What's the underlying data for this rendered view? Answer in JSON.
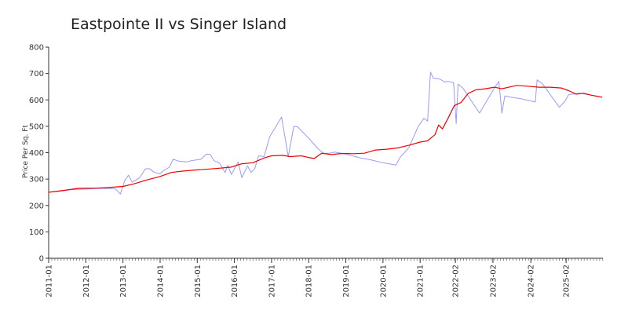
{
  "chart_data": {
    "type": "line",
    "title": "Eastpointe II vs Singer Island",
    "xlabel": "",
    "ylabel": "Price Per Sq. Ft",
    "xlim": [
      2011.0,
      2025.92
    ],
    "ylim": [
      0,
      800
    ],
    "yticks": [
      0,
      100,
      200,
      300,
      400,
      500,
      600,
      700,
      800
    ],
    "xticks": [
      {
        "label": "2011-01",
        "x": 2011.0
      },
      {
        "label": "2012-01",
        "x": 2012.0
      },
      {
        "label": "2013-01",
        "x": 2013.0
      },
      {
        "label": "2014-01",
        "x": 2014.0
      },
      {
        "label": "2015-01",
        "x": 2015.0
      },
      {
        "label": "2016-01",
        "x": 2016.0
      },
      {
        "label": "2017-01",
        "x": 2017.0
      },
      {
        "label": "2018-01",
        "x": 2018.0
      },
      {
        "label": "2019-01",
        "x": 2019.0
      },
      {
        "label": "2020-01",
        "x": 2020.0
      },
      {
        "label": "2021-01",
        "x": 2021.0
      },
      {
        "label": "2022-02",
        "x": 2021.95
      },
      {
        "label": "2023-02",
        "x": 2022.96
      },
      {
        "label": "2024-02",
        "x": 2023.98
      },
      {
        "label": "2025-02",
        "x": 2024.93
      }
    ],
    "grid": false,
    "legend": "none",
    "series": [
      {
        "color": "#9999ff",
        "points": [
          [
            2011.0,
            250
          ],
          [
            2011.3,
            254
          ],
          [
            2011.6,
            260
          ],
          [
            2012.0,
            262
          ],
          [
            2012.4,
            265
          ],
          [
            2012.8,
            263
          ],
          [
            2012.93,
            243
          ],
          [
            2013.05,
            295
          ],
          [
            2013.15,
            315
          ],
          [
            2013.25,
            288
          ],
          [
            2013.45,
            305
          ],
          [
            2013.6,
            338
          ],
          [
            2013.7,
            340
          ],
          [
            2013.85,
            325
          ],
          [
            2014.0,
            320
          ],
          [
            2014.1,
            333
          ],
          [
            2014.25,
            345
          ],
          [
            2014.35,
            375
          ],
          [
            2014.5,
            368
          ],
          [
            2014.7,
            365
          ],
          [
            2014.85,
            370
          ],
          [
            2015.1,
            375
          ],
          [
            2015.25,
            395
          ],
          [
            2015.35,
            393
          ],
          [
            2015.45,
            370
          ],
          [
            2015.6,
            360
          ],
          [
            2015.75,
            325
          ],
          [
            2015.82,
            352
          ],
          [
            2015.92,
            318
          ],
          [
            2016.1,
            365
          ],
          [
            2016.2,
            305
          ],
          [
            2016.35,
            350
          ],
          [
            2016.45,
            325
          ],
          [
            2016.55,
            340
          ],
          [
            2016.65,
            388
          ],
          [
            2016.8,
            385
          ],
          [
            2016.95,
            460
          ],
          [
            2017.27,
            535
          ],
          [
            2017.45,
            385
          ],
          [
            2017.6,
            500
          ],
          [
            2017.7,
            498
          ],
          [
            2018.0,
            455
          ],
          [
            2018.25,
            415
          ],
          [
            2018.4,
            398
          ],
          [
            2018.55,
            398
          ],
          [
            2018.7,
            402
          ],
          [
            2019.0,
            395
          ],
          [
            2019.25,
            385
          ],
          [
            2019.4,
            380
          ],
          [
            2019.6,
            375
          ],
          [
            2020.0,
            362
          ],
          [
            2020.35,
            353
          ],
          [
            2020.45,
            380
          ],
          [
            2020.7,
            420
          ],
          [
            2020.95,
            500
          ],
          [
            2021.1,
            530
          ],
          [
            2021.2,
            520
          ],
          [
            2021.28,
            705
          ],
          [
            2021.35,
            683
          ],
          [
            2021.55,
            678
          ],
          [
            2021.65,
            668
          ],
          [
            2021.75,
            670
          ],
          [
            2021.9,
            665
          ],
          [
            2021.97,
            510
          ],
          [
            2022.02,
            660
          ],
          [
            2022.15,
            645
          ],
          [
            2022.6,
            550
          ],
          [
            2023.0,
            645
          ],
          [
            2023.12,
            670
          ],
          [
            2023.2,
            550
          ],
          [
            2023.28,
            615
          ],
          [
            2023.45,
            610
          ],
          [
            2023.7,
            605
          ],
          [
            2023.9,
            598
          ],
          [
            2024.1,
            592
          ],
          [
            2024.15,
            676
          ],
          [
            2024.3,
            660
          ],
          [
            2024.75,
            572
          ],
          [
            2024.9,
            595
          ],
          [
            2025.0,
            620
          ],
          [
            2025.3,
            625
          ],
          [
            2025.6,
            618
          ],
          [
            2025.85,
            612
          ]
        ]
      },
      {
        "color": "#ee0000",
        "points": [
          [
            2011.0,
            250
          ],
          [
            2011.4,
            257
          ],
          [
            2011.8,
            265
          ],
          [
            2012.3,
            266
          ],
          [
            2012.6,
            268
          ],
          [
            2013.0,
            272
          ],
          [
            2013.3,
            282
          ],
          [
            2013.6,
            295
          ],
          [
            2014.0,
            310
          ],
          [
            2014.3,
            325
          ],
          [
            2014.6,
            330
          ],
          [
            2015.0,
            335
          ],
          [
            2015.5,
            340
          ],
          [
            2015.9,
            345
          ],
          [
            2016.2,
            358
          ],
          [
            2016.5,
            362
          ],
          [
            2016.8,
            380
          ],
          [
            2017.0,
            388
          ],
          [
            2017.3,
            390
          ],
          [
            2017.5,
            385
          ],
          [
            2017.8,
            388
          ],
          [
            2018.0,
            382
          ],
          [
            2018.15,
            378
          ],
          [
            2018.35,
            398
          ],
          [
            2018.6,
            393
          ],
          [
            2018.9,
            397
          ],
          [
            2019.2,
            396
          ],
          [
            2019.5,
            398
          ],
          [
            2019.8,
            410
          ],
          [
            2020.1,
            413
          ],
          [
            2020.4,
            418
          ],
          [
            2020.7,
            428
          ],
          [
            2021.0,
            440
          ],
          [
            2021.2,
            445
          ],
          [
            2021.4,
            468
          ],
          [
            2021.5,
            505
          ],
          [
            2021.6,
            490
          ],
          [
            2021.75,
            530
          ],
          [
            2021.92,
            578
          ],
          [
            2022.1,
            590
          ],
          [
            2022.3,
            625
          ],
          [
            2022.5,
            638
          ],
          [
            2022.75,
            642
          ],
          [
            2023.0,
            648
          ],
          [
            2023.2,
            642
          ],
          [
            2023.45,
            650
          ],
          [
            2023.6,
            655
          ],
          [
            2023.9,
            652
          ],
          [
            2024.2,
            648
          ],
          [
            2024.5,
            648
          ],
          [
            2024.8,
            645
          ],
          [
            2025.0,
            635
          ],
          [
            2025.2,
            622
          ],
          [
            2025.4,
            625
          ],
          [
            2025.6,
            618
          ],
          [
            2025.9,
            610
          ]
        ]
      }
    ]
  }
}
